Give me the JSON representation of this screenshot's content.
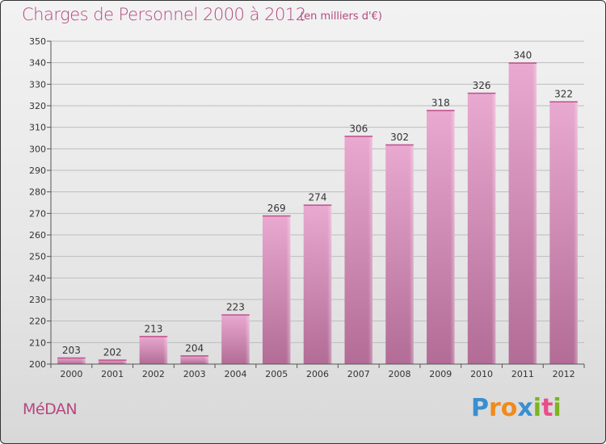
{
  "header": {
    "title": "Charges de Personnel 2000 à 2012",
    "subtitle": "(en milliers d'€)"
  },
  "footer": {
    "place": "MéDAN",
    "logo_letters": [
      "P",
      "r",
      "o",
      "x",
      "i",
      "t",
      "i"
    ],
    "logo_colors": [
      "#3a8fd0",
      "#f08a1c",
      "#f08a1c",
      "#3a8fd0",
      "#7ab51d",
      "#e84e8a",
      "#7ab51d"
    ]
  },
  "colors": {
    "accent": "#b5487f",
    "bar_top": "#e9a9d0",
    "bar_bottom": "#b26c96",
    "grid": "#bdbdbd"
  },
  "chart_data": {
    "type": "bar",
    "categories": [
      "2000",
      "2001",
      "2002",
      "2003",
      "2004",
      "2005",
      "2006",
      "2007",
      "2008",
      "2009",
      "2010",
      "2011",
      "2012"
    ],
    "values": [
      203,
      202,
      213,
      204,
      223,
      269,
      274,
      306,
      302,
      318,
      326,
      340,
      322
    ],
    "ylim": [
      200,
      350
    ],
    "yticks": [
      200,
      210,
      220,
      230,
      240,
      250,
      260,
      270,
      280,
      290,
      300,
      310,
      320,
      330,
      340,
      350
    ],
    "grid": true,
    "title": "Charges de Personnel 2000 à 2012",
    "xlabel": "",
    "ylabel": ""
  }
}
